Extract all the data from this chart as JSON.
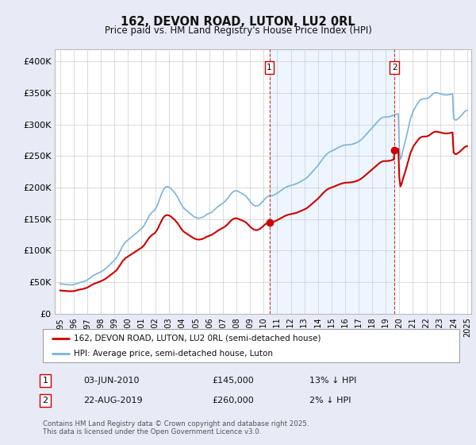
{
  "title": "162, DEVON ROAD, LUTON, LU2 0RL",
  "subtitle": "Price paid vs. HM Land Registry's House Price Index (HPI)",
  "background_color": "#e8eaf6",
  "plot_bg_color": "#ffffff",
  "grid_color": "#cccccc",
  "hpi_color": "#7ab3d9",
  "price_color": "#cc0000",
  "shade_color": "#ddeeff",
  "purchase1_date": 2010.42,
  "purchase1_price": 145000,
  "purchase1_label": "1",
  "purchase2_date": 2019.64,
  "purchase2_price": 260000,
  "purchase2_label": "2",
  "ylim": [
    0,
    420000
  ],
  "yticks": [
    0,
    50000,
    100000,
    150000,
    200000,
    250000,
    300000,
    350000,
    400000
  ],
  "ytick_labels": [
    "£0",
    "£50K",
    "£100K",
    "£150K",
    "£200K",
    "£250K",
    "£300K",
    "£350K",
    "£400K"
  ],
  "xlim_left": 1995.0,
  "xlim_right": 2025.3,
  "legend_line1": "162, DEVON ROAD, LUTON, LU2 0RL (semi-detached house)",
  "legend_line2": "HPI: Average price, semi-detached house, Luton",
  "footer1": "Contains HM Land Registry data © Crown copyright and database right 2025.",
  "footer2": "This data is licensed under the Open Government Licence v3.0.",
  "table_row1_num": "1",
  "table_row1_date": "03-JUN-2010",
  "table_row1_price": "£145,000",
  "table_row1_hpi": "13% ↓ HPI",
  "table_row2_num": "2",
  "table_row2_date": "22-AUG-2019",
  "table_row2_price": "£260,000",
  "table_row2_hpi": "2% ↓ HPI",
  "hpi_years": [
    1995.0,
    1995.08,
    1995.17,
    1995.25,
    1995.33,
    1995.42,
    1995.5,
    1995.58,
    1995.67,
    1995.75,
    1995.83,
    1995.92,
    1996.0,
    1996.08,
    1996.17,
    1996.25,
    1996.33,
    1996.42,
    1996.5,
    1996.58,
    1996.67,
    1996.75,
    1996.83,
    1996.92,
    1997.0,
    1997.08,
    1997.17,
    1997.25,
    1997.33,
    1997.42,
    1997.5,
    1997.58,
    1997.67,
    1997.75,
    1997.83,
    1997.92,
    1998.0,
    1998.08,
    1998.17,
    1998.25,
    1998.33,
    1998.42,
    1998.5,
    1998.58,
    1998.67,
    1998.75,
    1998.83,
    1998.92,
    1999.0,
    1999.08,
    1999.17,
    1999.25,
    1999.33,
    1999.42,
    1999.5,
    1999.58,
    1999.67,
    1999.75,
    1999.83,
    1999.92,
    2000.0,
    2000.08,
    2000.17,
    2000.25,
    2000.33,
    2000.42,
    2000.5,
    2000.58,
    2000.67,
    2000.75,
    2000.83,
    2000.92,
    2001.0,
    2001.08,
    2001.17,
    2001.25,
    2001.33,
    2001.42,
    2001.5,
    2001.58,
    2001.67,
    2001.75,
    2001.83,
    2001.92,
    2002.0,
    2002.08,
    2002.17,
    2002.25,
    2002.33,
    2002.42,
    2002.5,
    2002.58,
    2002.67,
    2002.75,
    2002.83,
    2002.92,
    2003.0,
    2003.08,
    2003.17,
    2003.25,
    2003.33,
    2003.42,
    2003.5,
    2003.58,
    2003.67,
    2003.75,
    2003.83,
    2003.92,
    2004.0,
    2004.08,
    2004.17,
    2004.25,
    2004.33,
    2004.42,
    2004.5,
    2004.58,
    2004.67,
    2004.75,
    2004.83,
    2004.92,
    2005.0,
    2005.08,
    2005.17,
    2005.25,
    2005.33,
    2005.42,
    2005.5,
    2005.58,
    2005.67,
    2005.75,
    2005.83,
    2005.92,
    2006.0,
    2006.08,
    2006.17,
    2006.25,
    2006.33,
    2006.42,
    2006.5,
    2006.58,
    2006.67,
    2006.75,
    2006.83,
    2006.92,
    2007.0,
    2007.08,
    2007.17,
    2007.25,
    2007.33,
    2007.42,
    2007.5,
    2007.58,
    2007.67,
    2007.75,
    2007.83,
    2007.92,
    2008.0,
    2008.08,
    2008.17,
    2008.25,
    2008.33,
    2008.42,
    2008.5,
    2008.58,
    2008.67,
    2008.75,
    2008.83,
    2008.92,
    2009.0,
    2009.08,
    2009.17,
    2009.25,
    2009.33,
    2009.42,
    2009.5,
    2009.58,
    2009.67,
    2009.75,
    2009.83,
    2009.92,
    2010.0,
    2010.08,
    2010.17,
    2010.25,
    2010.33,
    2010.42,
    2010.5,
    2010.58,
    2010.67,
    2010.75,
    2010.83,
    2010.92,
    2011.0,
    2011.08,
    2011.17,
    2011.25,
    2011.33,
    2011.42,
    2011.5,
    2011.58,
    2011.67,
    2011.75,
    2011.83,
    2011.92,
    2012.0,
    2012.08,
    2012.17,
    2012.25,
    2012.33,
    2012.42,
    2012.5,
    2012.58,
    2012.67,
    2012.75,
    2012.83,
    2012.92,
    2013.0,
    2013.08,
    2013.17,
    2013.25,
    2013.33,
    2013.42,
    2013.5,
    2013.58,
    2013.67,
    2013.75,
    2013.83,
    2013.92,
    2014.0,
    2014.08,
    2014.17,
    2014.25,
    2014.33,
    2014.42,
    2014.5,
    2014.58,
    2014.67,
    2014.75,
    2014.83,
    2014.92,
    2015.0,
    2015.08,
    2015.17,
    2015.25,
    2015.33,
    2015.42,
    2015.5,
    2015.58,
    2015.67,
    2015.75,
    2015.83,
    2015.92,
    2016.0,
    2016.08,
    2016.17,
    2016.25,
    2016.33,
    2016.42,
    2016.5,
    2016.58,
    2016.67,
    2016.75,
    2016.83,
    2016.92,
    2017.0,
    2017.08,
    2017.17,
    2017.25,
    2017.33,
    2017.42,
    2017.5,
    2017.58,
    2017.67,
    2017.75,
    2017.83,
    2017.92,
    2018.0,
    2018.08,
    2018.17,
    2018.25,
    2018.33,
    2018.42,
    2018.5,
    2018.58,
    2018.67,
    2018.75,
    2018.83,
    2018.92,
    2019.0,
    2019.08,
    2019.17,
    2019.25,
    2019.33,
    2019.42,
    2019.5,
    2019.58,
    2019.67,
    2019.75,
    2019.83,
    2019.92,
    2020.0,
    2020.08,
    2020.17,
    2020.25,
    2020.33,
    2020.42,
    2020.5,
    2020.58,
    2020.67,
    2020.75,
    2020.83,
    2020.92,
    2021.0,
    2021.08,
    2021.17,
    2021.25,
    2021.33,
    2021.42,
    2021.5,
    2021.58,
    2021.67,
    2021.75,
    2021.83,
    2021.92,
    2022.0,
    2022.08,
    2022.17,
    2022.25,
    2022.33,
    2022.42,
    2022.5,
    2022.58,
    2022.67,
    2022.75,
    2022.83,
    2022.92,
    2023.0,
    2023.08,
    2023.17,
    2023.25,
    2023.33,
    2023.42,
    2023.5,
    2023.58,
    2023.67,
    2023.75,
    2023.83,
    2023.92,
    2024.0,
    2024.08,
    2024.17,
    2024.25,
    2024.33,
    2024.42,
    2024.5,
    2024.58,
    2024.67,
    2024.75,
    2024.83,
    2024.92,
    2025.0
  ],
  "hpi_values": [
    47500,
    47200,
    47000,
    46800,
    46500,
    46300,
    46200,
    46100,
    46000,
    45900,
    45800,
    45900,
    46200,
    46800,
    47500,
    48200,
    48800,
    49300,
    49700,
    50100,
    50600,
    51200,
    51900,
    52600,
    53500,
    54800,
    56200,
    57700,
    59000,
    60200,
    61200,
    62000,
    62800,
    63600,
    64500,
    65500,
    66500,
    67500,
    68500,
    69800,
    71200,
    72800,
    74500,
    76200,
    78000,
    79800,
    81500,
    83200,
    85000,
    87000,
    89500,
    92500,
    96000,
    99500,
    103000,
    106500,
    109500,
    112000,
    114000,
    115500,
    117000,
    118500,
    120000,
    121500,
    123000,
    124500,
    126000,
    127500,
    129000,
    130500,
    132000,
    133500,
    135000,
    137000,
    139500,
    142500,
    146000,
    149500,
    153000,
    156000,
    158500,
    160500,
    162000,
    163500,
    165500,
    168500,
    172500,
    177000,
    182000,
    187000,
    191500,
    195500,
    198500,
    200500,
    201500,
    201500,
    201000,
    200000,
    198500,
    196500,
    194500,
    192500,
    190000,
    187500,
    184500,
    181000,
    177500,
    174000,
    171000,
    168500,
    166500,
    165000,
    163500,
    162000,
    160500,
    159000,
    157500,
    156000,
    154500,
    153500,
    152500,
    152000,
    151500,
    151500,
    151800,
    152300,
    153000,
    154000,
    155200,
    156500,
    157700,
    158700,
    159500,
    160200,
    161200,
    162500,
    164000,
    165800,
    167600,
    169200,
    170600,
    171800,
    173000,
    174200,
    175500,
    177000,
    178600,
    180500,
    182500,
    185000,
    187500,
    190000,
    192000,
    193500,
    194500,
    195000,
    195000,
    194500,
    193500,
    192500,
    191500,
    190500,
    189500,
    188500,
    187000,
    185200,
    183000,
    180500,
    178000,
    175800,
    174000,
    172500,
    171500,
    171000,
    171000,
    171500,
    172500,
    174000,
    175800,
    177800,
    180000,
    182000,
    183800,
    185200,
    186200,
    186800,
    187000,
    187200,
    187600,
    188200,
    189000,
    190000,
    191200,
    192500,
    193800,
    195000,
    196200,
    197500,
    198800,
    200000,
    201000,
    201800,
    202500,
    203000,
    203500,
    204000,
    204500,
    205000,
    205600,
    206300,
    207100,
    208000,
    209000,
    210000,
    211000,
    212000,
    213000,
    214200,
    215600,
    217200,
    219000,
    221000,
    223000,
    225000,
    227000,
    229000,
    231000,
    233000,
    235200,
    237500,
    240000,
    242500,
    245000,
    247500,
    249800,
    251800,
    253500,
    255000,
    256200,
    257200,
    258000,
    258800,
    259600,
    260500,
    261500,
    262500,
    263500,
    264500,
    265300,
    266000,
    266700,
    267200,
    267600,
    267800,
    267900,
    268000,
    268200,
    268500,
    268800,
    269200,
    269700,
    270300,
    271000,
    272000,
    273000,
    274200,
    275600,
    277200,
    279000,
    281000,
    283000,
    285000,
    287000,
    289000,
    291000,
    293000,
    295000,
    297000,
    299000,
    301000,
    303000,
    305000,
    307000,
    308800,
    310200,
    311200,
    311800,
    312000,
    312000,
    312000,
    312200,
    312500,
    313000,
    313600,
    314300,
    315000,
    315700,
    316300,
    316800,
    317200,
    262000,
    245000,
    250000,
    258000,
    265000,
    272000,
    279000,
    287000,
    295000,
    303000,
    310000,
    315000,
    320000,
    324000,
    327000,
    330000,
    333000,
    336000,
    338000,
    339500,
    340500,
    341000,
    341000,
    341000,
    341200,
    341800,
    342800,
    344200,
    345800,
    347500,
    349000,
    350000,
    350500,
    350500,
    350000,
    349500,
    349000,
    348500,
    348000,
    347500,
    347200,
    347000,
    347000,
    347200,
    347500,
    348000,
    348500,
    349000,
    310000,
    308000,
    307000,
    308000,
    309500,
    311000,
    313000,
    315000,
    317000,
    319000,
    321000,
    322000,
    322500
  ]
}
